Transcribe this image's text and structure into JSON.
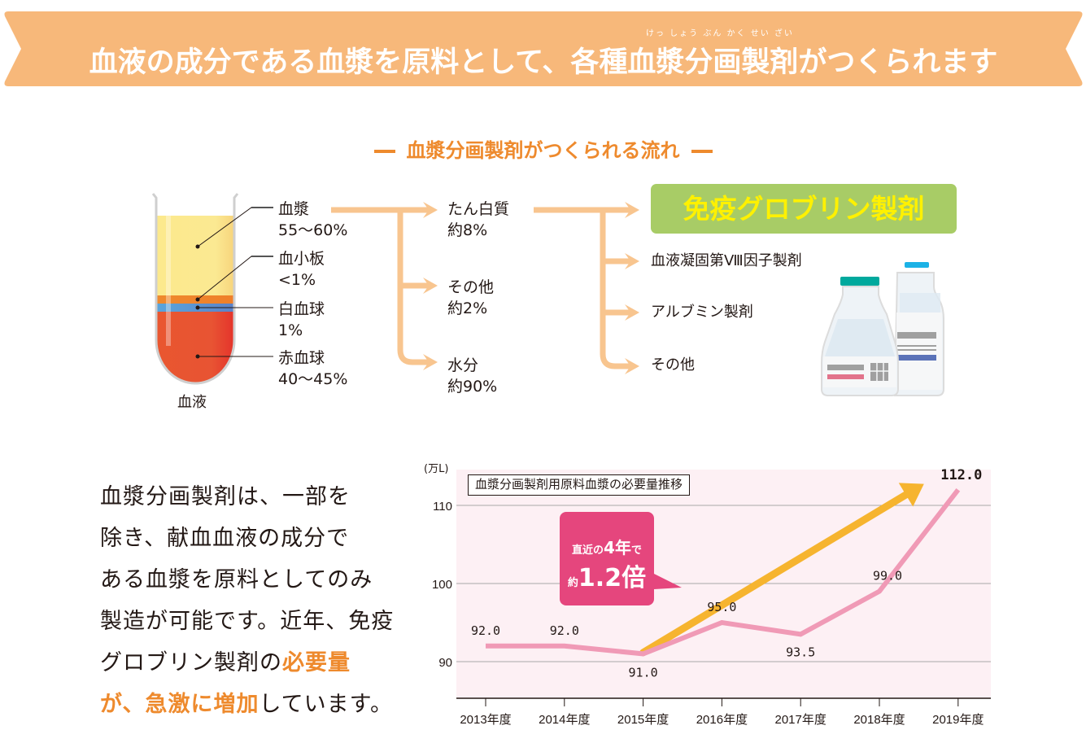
{
  "banner": {
    "title": "血液の成分である血漿を原料として、各種血漿分画製剤がつくられます",
    "ruby": "けっ しょう ぶん かく せい ざい"
  },
  "flow": {
    "heading": "血漿分画製剤がつくられる流れ",
    "tube_caption": "血液",
    "blood_components": [
      {
        "name": "血漿",
        "share": "55〜60%"
      },
      {
        "name": "血小板",
        "share": "<1%"
      },
      {
        "name": "白血球",
        "share": "1%"
      },
      {
        "name": "赤血球",
        "share": "40〜45%"
      }
    ],
    "plasma_components": [
      {
        "name": "たん白質",
        "share": "約8%"
      },
      {
        "name": "その他",
        "share": "約2%"
      },
      {
        "name": "水分",
        "share": "約90%"
      }
    ],
    "products": {
      "highlight": "免疫グロブリン製剤",
      "items": [
        "血液凝固第Ⅷ因子製剤",
        "アルブミン製剤",
        "その他"
      ]
    },
    "colors": {
      "plasma": "#fbe98a",
      "platelet": "#ee8a2d",
      "white_cell": "#5aa6dc",
      "red_cell": "#e8522f",
      "arrow": "#f8c58f",
      "highlight_bg": "#a8cc66",
      "highlight_text": "#fff100"
    }
  },
  "paragraph": {
    "lines": [
      {
        "text": "血漿分画製剤は、一部を"
      },
      {
        "text": "除き、献血血液の成分で"
      },
      {
        "text": "ある血漿を原料としてのみ"
      },
      {
        "text": "製造が可能です。近年、免疫"
      },
      {
        "text": "グロブリン製剤の",
        "highlight": "必要量"
      },
      {
        "highlight": "が、急激に増加",
        "text": "しています。"
      }
    ],
    "highlight_color": "#ee8a2d"
  },
  "chart_data": {
    "type": "line",
    "title": "血漿分画製剤用原料血漿の必要量推移",
    "ylabel": "(万L)",
    "xlabel": "",
    "categories": [
      "2013年度",
      "2014年度",
      "2015年度",
      "2016年度",
      "2017年度",
      "2018年度",
      "2019年度"
    ],
    "series": [
      {
        "name": "必要量",
        "values": [
          92.0,
          92.0,
          91.0,
          95.0,
          93.5,
          99.0,
          112.0
        ],
        "color": "#f09ab6"
      }
    ],
    "data_labels": [
      "92.0",
      "92.0",
      "91.0",
      "95.0",
      "93.5",
      "99.0",
      "112.0"
    ],
    "yticks": [
      90,
      100,
      110
    ],
    "ylim": [
      85.5,
      115
    ],
    "grid": true,
    "background": "#fdf0f4",
    "annotation": {
      "line1_pre": "直近の",
      "line1_em": "4年",
      "line1_post": "で",
      "line2_pre": "約",
      "line2_em": "1.2倍",
      "color": "#e5467d",
      "trend_arrow_color": "#f6b42f",
      "trend_from": {
        "category": "2015年度",
        "value": 94.5
      },
      "trend_to": {
        "category": "2019年度",
        "value": 111.5
      }
    }
  }
}
